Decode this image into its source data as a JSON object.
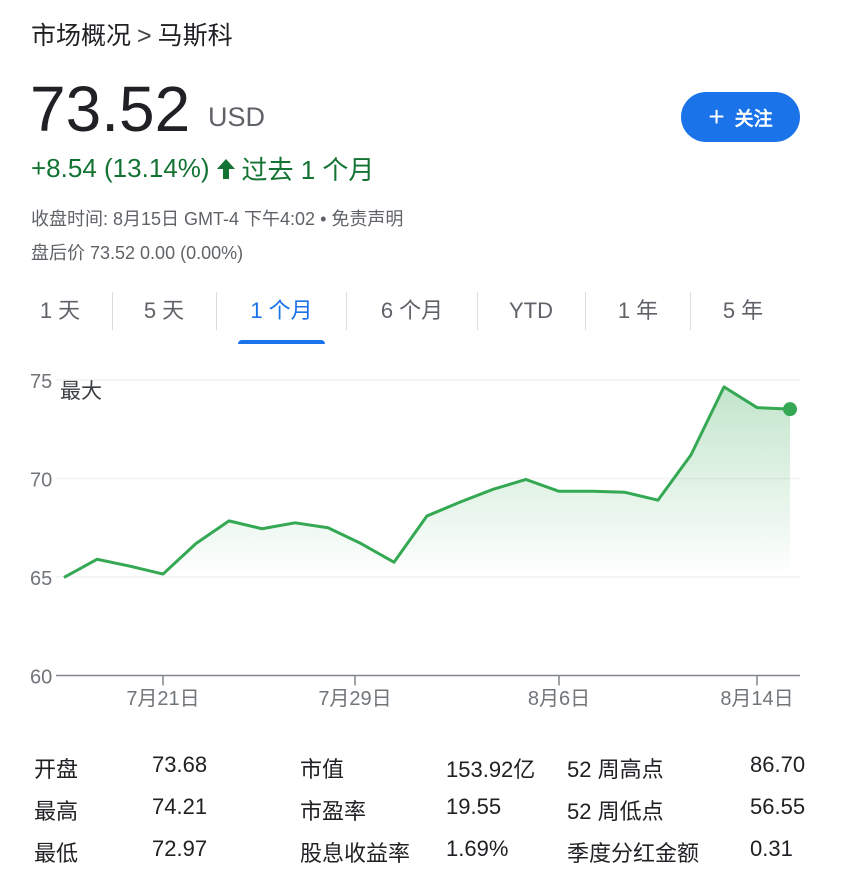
{
  "breadcrumb": {
    "parent": "市场概况",
    "separator": ">",
    "current": "马斯科"
  },
  "quote": {
    "price": "73.52",
    "currency": "USD",
    "change": "+8.54 (13.14%)",
    "period": "过去 1 个月",
    "close_time": "收盘时间: 8月15日 GMT-4 下午4:02",
    "disclaimer": "免责声明",
    "after_hours": "盘后价 73.52 0.00 (0.00%)"
  },
  "follow_button": {
    "label": "关注",
    "icon": "plus-icon"
  },
  "tabs": [
    {
      "label": "1 天"
    },
    {
      "label": "5 天"
    },
    {
      "label": "1 个月",
      "active": true
    },
    {
      "label": "6 个月"
    },
    {
      "label": "YTD"
    },
    {
      "label": "1 年"
    },
    {
      "label": "5 年"
    }
  ],
  "colors": {
    "up": "#137333",
    "line": "#34a853",
    "accent": "#1a73e8"
  },
  "chart_data": {
    "type": "area",
    "annotation": "最大",
    "ylim": [
      60,
      75
    ],
    "yticks": [
      "75",
      "70",
      "65",
      "60"
    ],
    "xticks": [
      {
        "date": "2025-07-21",
        "label": "7月21日"
      },
      {
        "date": "2025-07-29",
        "label": "7月29日"
      },
      {
        "date": "2025-08-06",
        "label": "8月6日"
      },
      {
        "date": "2025-08-14",
        "label": "8月14日"
      }
    ],
    "grid": true,
    "x": [
      "07-16",
      "07-17",
      "07-18",
      "07-21",
      "07-22",
      "07-23",
      "07-24",
      "07-25",
      "07-28",
      "07-29",
      "07-30",
      "07-31",
      "08-01",
      "08-04",
      "08-05",
      "08-06",
      "08-07",
      "08-08",
      "08-11",
      "08-12",
      "08-13",
      "08-14",
      "08-15"
    ],
    "values": [
      64.98,
      65.9,
      65.55,
      65.15,
      66.7,
      67.85,
      67.45,
      67.75,
      67.5,
      66.7,
      65.75,
      68.1,
      68.8,
      69.45,
      69.95,
      69.35,
      69.35,
      69.3,
      68.9,
      71.2,
      74.65,
      73.6,
      73.52
    ]
  },
  "stats": [
    [
      {
        "label": "开盘",
        "value": "73.68"
      },
      {
        "label": "最高",
        "value": "74.21"
      },
      {
        "label": "最低",
        "value": "72.97"
      }
    ],
    [
      {
        "label": "市值",
        "value": "153.92亿"
      },
      {
        "label": "市盈率",
        "value": "19.55"
      },
      {
        "label": "股息收益率",
        "value": "1.69%"
      }
    ],
    [
      {
        "label": "52 周高点",
        "value": "86.70"
      },
      {
        "label": "52 周低点",
        "value": "56.55"
      },
      {
        "label": "季度分红金额",
        "value": "0.31"
      }
    ]
  ]
}
